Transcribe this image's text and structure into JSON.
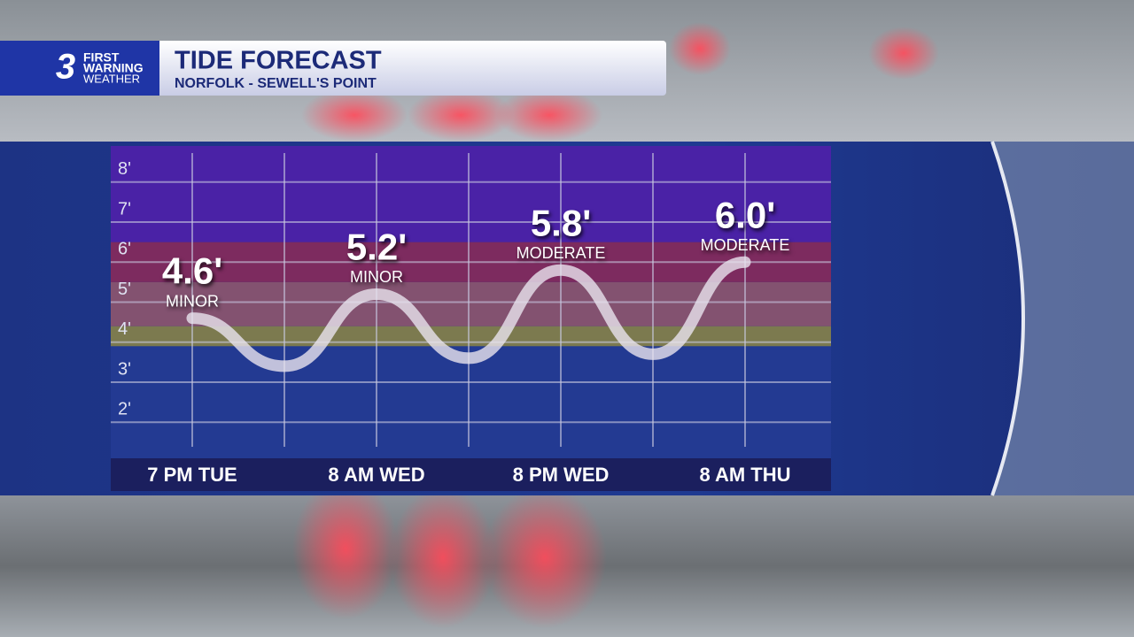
{
  "logo": {
    "number": "3",
    "line1": "FIRST",
    "line2": "WARNING",
    "line3": "WEATHER"
  },
  "chart_data": {
    "type": "line",
    "title": "TIDE FORECAST",
    "subtitle": "NORFOLK - SEWELL'S POINT",
    "categories": [
      "7 PM TUE",
      null,
      "8 AM WED",
      null,
      "8 PM WED",
      null,
      "8 AM THU"
    ],
    "values": [
      4.6,
      3.4,
      5.2,
      3.6,
      5.8,
      3.7,
      6.0
    ],
    "value_labels": [
      "4.6'",
      null,
      "5.2'",
      null,
      "5.8'",
      null,
      "6.0'"
    ],
    "status_labels": [
      "MINOR",
      null,
      "MINOR",
      null,
      "MODERATE",
      null,
      "MODERATE"
    ],
    "color": "#e8e4ee",
    "ylim": [
      1.1,
      8.9
    ],
    "yticks": [
      {
        "value": 2,
        "label": "2'"
      },
      {
        "value": 3,
        "label": "3'"
      },
      {
        "value": 4,
        "label": "4'"
      },
      {
        "value": 5,
        "label": "5'"
      },
      {
        "value": 6,
        "label": "6'"
      },
      {
        "value": 7,
        "label": "7'"
      },
      {
        "value": 8,
        "label": "8'"
      }
    ],
    "bands": [
      {
        "from": 3.9,
        "to": 4.4,
        "color": "#7c7a4f"
      },
      {
        "from": 4.4,
        "to": 5.5,
        "color": "#835270"
      },
      {
        "from": 5.5,
        "to": 6.5,
        "color": "#7d2b5f"
      },
      {
        "from": 6.5,
        "to": 8.9,
        "color": "#4a22a6"
      }
    ],
    "grid": true
  }
}
